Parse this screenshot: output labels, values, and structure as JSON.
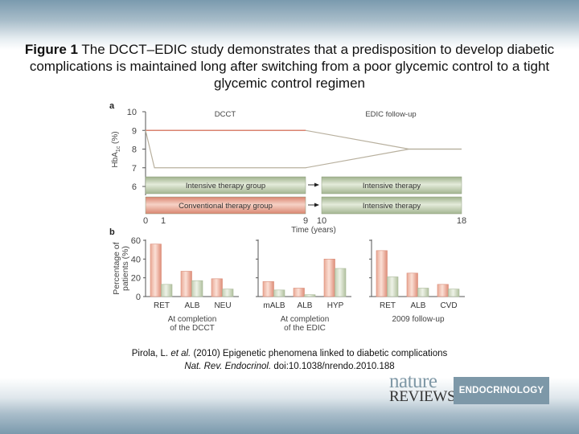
{
  "caption": {
    "label": "Figure 1",
    "text": " The DCCT–EDIC study demonstrates that a predisposition to develop diabetic complications is maintained long after switching from a poor glycemic control to a tight glycemic control regimen"
  },
  "citation": {
    "line1_authors": "Pirola, L. ",
    "line1_etal": "et al.",
    "line1_rest": " (2010) Epigenetic phenomena linked to diabetic complications",
    "line2_journal": "Nat. Rev. Endocrinol.",
    "line2_doi": " doi:10.1038/nrendo.2010.188"
  },
  "logo": {
    "nature": "nature",
    "reviews": "REVIEWS",
    "section": "ENDOCRINOLOGY"
  },
  "colors": {
    "conventional": "#e39a86",
    "intensive": "#b9c8a8",
    "line": "#b8b09e",
    "red_line": "#d9826f",
    "logo_blue": "#7d98a8"
  },
  "chart_data": [
    {
      "panel": "a",
      "type": "line",
      "title": "",
      "section_labels": [
        "DCCT",
        "EDIC follow-up"
      ],
      "xlabel": "Time (years)",
      "ylabel": "HbA1c (%)",
      "x_ticks": [
        0,
        1,
        9,
        10,
        18
      ],
      "y_ticks": [
        6,
        7,
        8,
        9,
        10
      ],
      "ylim": [
        6,
        10
      ],
      "xlim": [
        0,
        18
      ],
      "series": [
        {
          "name": "Conventional therapy group",
          "x": [
            0,
            9,
            15,
            18
          ],
          "y": [
            9,
            9,
            8,
            8
          ]
        },
        {
          "name": "Intensive therapy group",
          "x": [
            0,
            0.5,
            9,
            15,
            18
          ],
          "y": [
            9,
            7,
            7,
            8,
            8
          ]
        }
      ],
      "bars": [
        {
          "row": 0,
          "label": "Intensive therapy group",
          "from": 0,
          "to": 9,
          "color": "intensive"
        },
        {
          "row": 0,
          "label": "Intensive therapy",
          "from": 10,
          "to": 18,
          "color": "intensive"
        },
        {
          "row": 1,
          "label": "Conventional therapy group",
          "from": 0,
          "to": 9,
          "color": "conventional"
        },
        {
          "row": 1,
          "label": "Intensive therapy",
          "from": 10,
          "to": 18,
          "color": "intensive"
        }
      ]
    },
    {
      "panel": "b",
      "type": "bar",
      "ylabel": "Percentage of patients (%)",
      "y_ticks": [
        0,
        20,
        40,
        60
      ],
      "ylim": [
        0,
        60
      ],
      "groups": [
        {
          "title_lines": [
            "At completion",
            "of the DCCT"
          ],
          "categories": [
            "RET",
            "ALB",
            "NEU"
          ],
          "series": [
            {
              "name": "Conventional",
              "values": [
                56,
                27,
                19
              ]
            },
            {
              "name": "Intensive",
              "values": [
                13,
                17,
                8
              ]
            }
          ]
        },
        {
          "title_lines": [
            "At completion",
            "of the EDIC"
          ],
          "categories": [
            "mALB",
            "ALB",
            "HYP"
          ],
          "series": [
            {
              "name": "Conventional",
              "values": [
                16,
                9,
                40
              ]
            },
            {
              "name": "Intensive",
              "values": [
                7,
                2,
                30
              ]
            }
          ]
        },
        {
          "title_lines": [
            "2009 follow-up"
          ],
          "categories": [
            "RET",
            "ALB",
            "CVD"
          ],
          "series": [
            {
              "name": "Conventional",
              "values": [
                49,
                25,
                13
              ]
            },
            {
              "name": "Intensive",
              "values": [
                21,
                9,
                8
              ]
            }
          ]
        }
      ]
    }
  ]
}
